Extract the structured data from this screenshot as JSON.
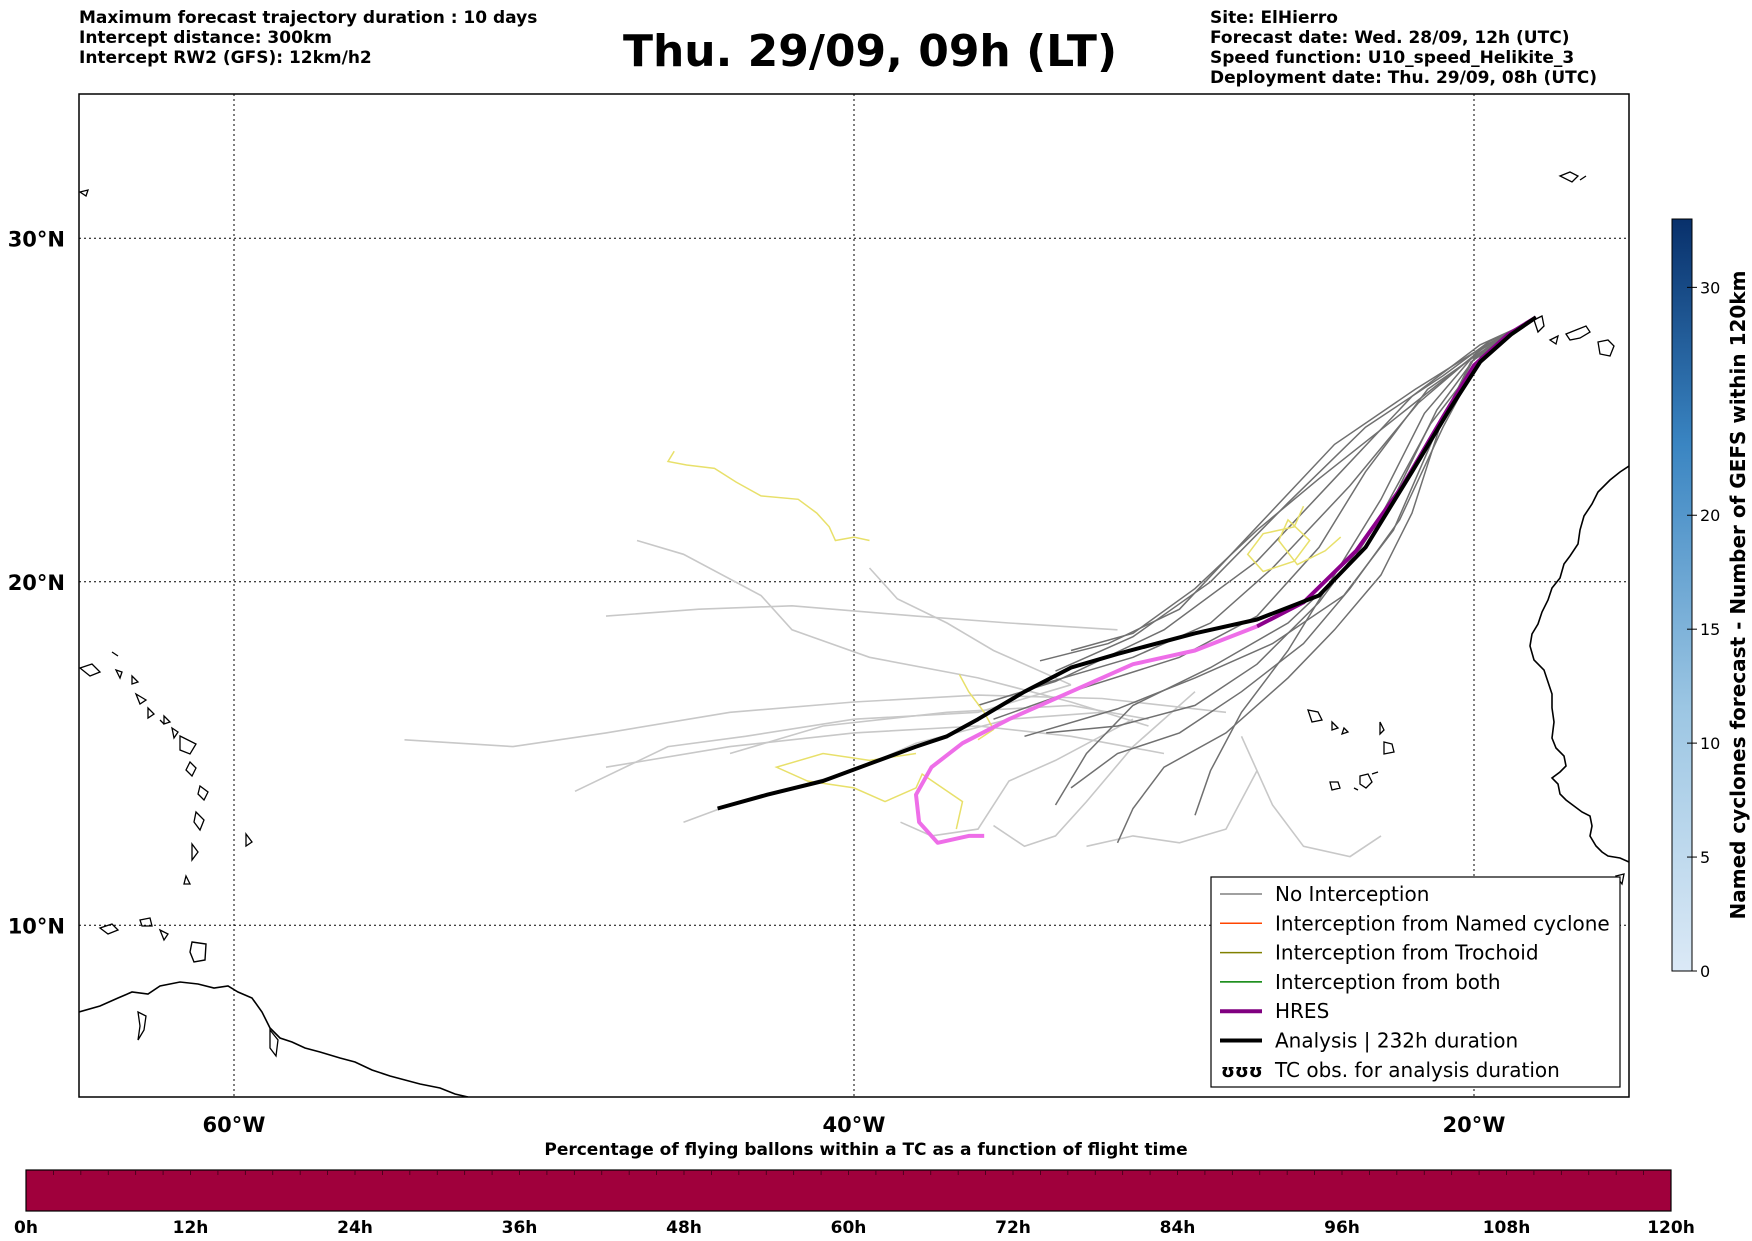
{
  "header_left": [
    "Maximum forecast trajectory duration : 10 days",
    "Intercept distance: 300km",
    "Intercept RW2 (GFS):  12km/h2"
  ],
  "title": "Thu. 29/09, 09h (LT)",
  "header_right": [
    "Site: ElHierro",
    "Forecast date: Wed. 28/09, 12h (UTC)",
    "Speed function: U10_speed_Helikite_3",
    "Deployment date: Thu. 29/09, 08h (UTC)"
  ],
  "map": {
    "lon_range": [
      -65,
      -15
    ],
    "lat_range": [
      5,
      34.2
    ],
    "lon_ticks": [
      {
        "v": -60,
        "label": "60°W"
      },
      {
        "v": -40,
        "label": "40°W"
      },
      {
        "v": -20,
        "label": "20°W"
      }
    ],
    "lat_ticks": [
      {
        "v": 30,
        "label": "30°N"
      },
      {
        "v": 20,
        "label": "20°N"
      },
      {
        "v": 10,
        "label": "10°N"
      }
    ],
    "grid": "dotted",
    "site": {
      "name": "ElHierro",
      "lon": -18,
      "lat": 27.7
    }
  },
  "tracks": {
    "analysis": [
      [
        -18.0,
        27.7
      ],
      [
        -18.8,
        27.2
      ],
      [
        -19.8,
        26.4
      ],
      [
        -20.8,
        25.0
      ],
      [
        -22.0,
        23.2
      ],
      [
        -23.5,
        21.0
      ],
      [
        -25.0,
        19.6
      ],
      [
        -27.0,
        18.9
      ],
      [
        -29.0,
        18.5
      ],
      [
        -31.5,
        17.9
      ],
      [
        -33.0,
        17.5
      ],
      [
        -34.5,
        16.8
      ],
      [
        -36.0,
        16.0
      ],
      [
        -37.0,
        15.5
      ],
      [
        -38.0,
        15.2
      ],
      [
        -39.5,
        14.7
      ],
      [
        -41.0,
        14.2
      ],
      [
        -42.8,
        13.8
      ],
      [
        -44.4,
        13.4
      ]
    ],
    "hres": [
      [
        -18.0,
        27.7
      ],
      [
        -18.9,
        27.2
      ],
      [
        -20.0,
        26.3
      ],
      [
        -21.0,
        24.8
      ],
      [
        -22.3,
        22.8
      ],
      [
        -23.8,
        20.9
      ],
      [
        -25.5,
        19.4
      ],
      [
        -27.0,
        18.7
      ],
      [
        -29.0,
        18.0
      ],
      [
        -31.0,
        17.6
      ],
      [
        -33.0,
        16.8
      ],
      [
        -35.0,
        16.0
      ],
      [
        -36.5,
        15.3
      ],
      [
        -37.5,
        14.6
      ],
      [
        -38.0,
        13.8
      ],
      [
        -37.9,
        13.0
      ],
      [
        -37.3,
        12.4
      ],
      [
        -36.3,
        12.6
      ],
      [
        -35.8,
        12.6
      ]
    ],
    "gefs_no_interception": [
      [
        [
          -18.1,
          27.6
        ],
        [
          -19.5,
          27.0
        ],
        [
          -21.0,
          26.0
        ],
        [
          -23.5,
          24.5
        ],
        [
          -26.0,
          22.3
        ],
        [
          -28.5,
          20.0
        ],
        [
          -31.0,
          18.4
        ],
        [
          -33.5,
          17.4
        ]
      ],
      [
        [
          -18.1,
          27.6
        ],
        [
          -19.8,
          26.9
        ],
        [
          -22.0,
          25.4
        ],
        [
          -24.5,
          23.0
        ],
        [
          -27.0,
          20.6
        ],
        [
          -30.0,
          18.6
        ],
        [
          -33.5,
          17.1
        ],
        [
          -36.0,
          16.4
        ]
      ],
      [
        [
          -18.1,
          27.6
        ],
        [
          -19.6,
          26.8
        ],
        [
          -21.5,
          25.6
        ],
        [
          -23.5,
          23.2
        ],
        [
          -25.0,
          21.0
        ],
        [
          -27.0,
          19.0
        ],
        [
          -29.5,
          17.8
        ],
        [
          -33.0,
          16.8
        ],
        [
          -35.5,
          16.0
        ]
      ],
      [
        [
          -18.1,
          27.6
        ],
        [
          -19.9,
          26.6
        ],
        [
          -21.2,
          25.0
        ],
        [
          -22.5,
          22.6
        ],
        [
          -24.0,
          20.5
        ],
        [
          -26.0,
          18.8
        ],
        [
          -28.5,
          17.5
        ],
        [
          -31.0,
          16.4
        ],
        [
          -32.5,
          15.0
        ],
        [
          -33.5,
          13.5
        ]
      ],
      [
        [
          -18.1,
          27.6
        ],
        [
          -20.0,
          26.5
        ],
        [
          -21.0,
          24.8
        ],
        [
          -22.0,
          22.0
        ],
        [
          -23.0,
          20.2
        ],
        [
          -24.5,
          18.6
        ],
        [
          -26.0,
          17.2
        ],
        [
          -28.0,
          15.6
        ],
        [
          -30.0,
          14.6
        ],
        [
          -31.0,
          13.4
        ],
        [
          -31.5,
          12.4
        ]
      ],
      [
        [
          -18.1,
          27.6
        ],
        [
          -19.7,
          26.7
        ],
        [
          -21.0,
          24.5
        ],
        [
          -22.4,
          21.8
        ],
        [
          -24.0,
          19.8
        ],
        [
          -25.5,
          18.2
        ],
        [
          -27.5,
          16.8
        ],
        [
          -29.5,
          15.6
        ],
        [
          -31.5,
          15.0
        ],
        [
          -33.0,
          14.0
        ]
      ],
      [
        [
          -18.1,
          27.6
        ],
        [
          -19.6,
          26.9
        ],
        [
          -21.8,
          25.2
        ],
        [
          -24.0,
          22.8
        ],
        [
          -26.5,
          20.4
        ],
        [
          -28.5,
          18.8
        ],
        [
          -31.0,
          17.8
        ],
        [
          -34.0,
          17.0
        ]
      ],
      [
        [
          -18.1,
          27.6
        ],
        [
          -19.7,
          26.8
        ],
        [
          -22.2,
          25.0
        ],
        [
          -25.0,
          23.0
        ],
        [
          -27.0,
          21.5
        ],
        [
          -29.0,
          19.8
        ],
        [
          -31.0,
          18.5
        ],
        [
          -33.0,
          18.0
        ]
      ],
      [
        [
          -18.1,
          27.6
        ],
        [
          -19.9,
          26.7
        ],
        [
          -21.6,
          24.9
        ],
        [
          -23.0,
          22.4
        ],
        [
          -24.5,
          20.2
        ],
        [
          -26.0,
          18.0
        ],
        [
          -27.5,
          16.2
        ],
        [
          -28.5,
          14.5
        ],
        [
          -29.0,
          13.2
        ]
      ],
      [
        [
          -18.1,
          27.6
        ],
        [
          -19.7,
          26.6
        ],
        [
          -21.4,
          24.6
        ],
        [
          -23.2,
          21.6
        ],
        [
          -25.0,
          19.4
        ],
        [
          -27.0,
          17.6
        ],
        [
          -29.0,
          16.4
        ],
        [
          -31.5,
          15.8
        ],
        [
          -33.8,
          15.6
        ]
      ],
      [
        [
          -18.1,
          27.6
        ],
        [
          -20.1,
          26.4
        ],
        [
          -21.3,
          24.2
        ],
        [
          -22.6,
          21.5
        ],
        [
          -24.2,
          19.6
        ],
        [
          -26.5,
          18.2
        ],
        [
          -29.0,
          17.2
        ],
        [
          -31.5,
          16.3
        ],
        [
          -34.5,
          15.5
        ]
      ],
      [
        [
          -18.1,
          27.6
        ],
        [
          -19.6,
          26.9
        ],
        [
          -21.9,
          25.6
        ],
        [
          -24.5,
          24.0
        ],
        [
          -27.0,
          21.6
        ],
        [
          -29.5,
          19.2
        ],
        [
          -31.8,
          18.2
        ],
        [
          -34.0,
          17.7
        ]
      ]
    ],
    "gefs_light": [
      [
        [
          -31.5,
          18.6
        ],
        [
          -35.0,
          18.8
        ],
        [
          -38.0,
          19.0
        ],
        [
          -42.0,
          19.3
        ],
        [
          -45.0,
          19.2
        ],
        [
          -48.0,
          19.0
        ]
      ],
      [
        [
          -28.0,
          16.2
        ],
        [
          -32.0,
          16.6
        ],
        [
          -36.0,
          16.7
        ],
        [
          -40.0,
          16.5
        ],
        [
          -44.0,
          16.2
        ],
        [
          -48.0,
          15.6
        ],
        [
          -51.0,
          15.2
        ],
        [
          -54.5,
          15.4
        ]
      ],
      [
        [
          -30.0,
          15.0
        ],
        [
          -33.0,
          15.5
        ],
        [
          -36.0,
          15.8
        ],
        [
          -40.0,
          15.6
        ],
        [
          -44.0,
          15.2
        ],
        [
          -48.0,
          14.6
        ]
      ],
      [
        [
          -33.0,
          17.0
        ],
        [
          -35.5,
          18.0
        ],
        [
          -37.0,
          18.8
        ],
        [
          -38.6,
          19.5
        ],
        [
          -39.5,
          20.4
        ]
      ],
      [
        [
          -30.5,
          15.8
        ],
        [
          -33.0,
          16.5
        ],
        [
          -36.0,
          17.2
        ],
        [
          -39.5,
          17.8
        ],
        [
          -42.0,
          18.6
        ],
        [
          -43.0,
          19.6
        ],
        [
          -45.5,
          20.8
        ],
        [
          -47.0,
          21.2
        ]
      ],
      [
        [
          -32.0,
          16.2
        ],
        [
          -35.0,
          16.0
        ],
        [
          -38.0,
          15.3
        ],
        [
          -40.0,
          14.5
        ],
        [
          -42.0,
          14.0
        ],
        [
          -44.0,
          13.5
        ],
        [
          -45.5,
          13.0
        ]
      ],
      [
        [
          -29.0,
          16.8
        ],
        [
          -31.0,
          15.2
        ],
        [
          -32.5,
          13.6
        ],
        [
          -33.5,
          12.6
        ],
        [
          -34.5,
          12.3
        ],
        [
          -35.5,
          12.9
        ]
      ],
      [
        [
          -27.0,
          14.5
        ],
        [
          -28.0,
          12.8
        ],
        [
          -29.5,
          12.4
        ],
        [
          -31.0,
          12.6
        ],
        [
          -32.5,
          12.3
        ]
      ],
      [
        [
          -31.0,
          16.0
        ],
        [
          -33.5,
          14.8
        ],
        [
          -35.0,
          14.2
        ],
        [
          -36.0,
          12.8
        ],
        [
          -37.5,
          12.6
        ],
        [
          -38.5,
          13.0
        ]
      ],
      [
        [
          -27.5,
          15.5
        ],
        [
          -26.5,
          13.5
        ],
        [
          -25.5,
          12.3
        ],
        [
          -24.0,
          12.0
        ],
        [
          -23.0,
          12.6
        ]
      ],
      [
        [
          -33.0,
          17.0
        ],
        [
          -36.0,
          16.2
        ],
        [
          -40.0,
          16.0
        ],
        [
          -43.5,
          15.5
        ],
        [
          -46.0,
          15.2
        ],
        [
          -49.0,
          13.9
        ]
      ],
      [
        [
          -30.5,
          16.0
        ],
        [
          -33.0,
          16.4
        ],
        [
          -37.0,
          16.2
        ],
        [
          -41.0,
          15.8
        ],
        [
          -44.0,
          15.0
        ]
      ]
    ],
    "yellow": [
      [
        [
          -45.8,
          23.8
        ],
        [
          -46.0,
          23.5
        ],
        [
          -45.4,
          23.4
        ],
        [
          -44.5,
          23.3
        ],
        [
          -43.8,
          22.9
        ],
        [
          -43.0,
          22.5
        ],
        [
          -41.8,
          22.4
        ],
        [
          -41.2,
          22.0
        ],
        [
          -40.8,
          21.6
        ],
        [
          -40.6,
          21.2
        ],
        [
          -40.0,
          21.3
        ],
        [
          -39.5,
          21.2
        ]
      ],
      [
        [
          -25.5,
          22.2
        ],
        [
          -25.8,
          21.6
        ],
        [
          -26.8,
          21.4
        ],
        [
          -27.3,
          20.8
        ],
        [
          -26.8,
          20.3
        ],
        [
          -25.8,
          20.6
        ],
        [
          -25.3,
          21.2
        ],
        [
          -26.0,
          21.8
        ],
        [
          -26.3,
          21.2
        ],
        [
          -25.7,
          20.5
        ],
        [
          -24.8,
          20.9
        ],
        [
          -24.3,
          21.3
        ]
      ],
      [
        [
          -36.6,
          17.3
        ],
        [
          -36.3,
          16.8
        ],
        [
          -35.8,
          16.2
        ],
        [
          -35.5,
          15.7
        ],
        [
          -36.0,
          15.4
        ]
      ],
      [
        [
          -38.0,
          15.0
        ],
        [
          -39.5,
          14.8
        ],
        [
          -41.0,
          15.0
        ],
        [
          -42.5,
          14.6
        ],
        [
          -41.5,
          14.2
        ],
        [
          -40.0,
          14.0
        ],
        [
          -39.0,
          13.6
        ],
        [
          -38.0,
          14.0
        ],
        [
          -37.8,
          14.4
        ],
        [
          -36.5,
          13.6
        ],
        [
          -36.7,
          12.8
        ]
      ]
    ]
  },
  "legend": [
    {
      "label": "No Interception",
      "color": "#808080",
      "width": 1.5
    },
    {
      "label": "Interception from Named cyclone",
      "color": "#ff4500",
      "width": 1.5
    },
    {
      "label": "Interception from Trochoid",
      "color": "#808000",
      "width": 1.5
    },
    {
      "label": "Interception from both",
      "color": "#008000",
      "width": 1.5
    },
    {
      "label": "HRES",
      "color": "#800080",
      "width": 4
    },
    {
      "label": "Analysis | 232h duration",
      "color": "#000000",
      "width": 4
    },
    {
      "label": "TC obs. for analysis duration",
      "color": "#000000",
      "symbol": "ʊʊʊ"
    }
  ],
  "colorbar_right": {
    "label": "Named cyclones forecast - Number of GEFS within 120km",
    "ticks": [
      0,
      5,
      10,
      15,
      20,
      30
    ],
    "max": 33,
    "colors": [
      "#dbe9f6",
      "#08306b"
    ]
  },
  "colorbar_bottom": {
    "title": "Percentage of flying ballons within a TC as a function of flight time",
    "ticks": [
      "0h",
      "12h",
      "24h",
      "36h",
      "48h",
      "60h",
      "72h",
      "84h",
      "96h",
      "108h",
      "120h"
    ],
    "color": "#a0003c"
  }
}
